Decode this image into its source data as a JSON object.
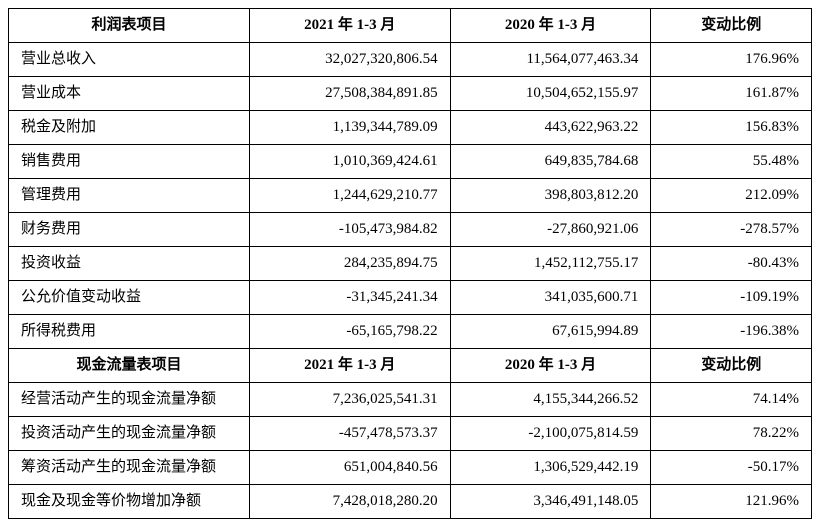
{
  "section1": {
    "headers": [
      "利润表项目",
      "2021 年 1-3 月",
      "2020 年 1-3 月",
      "变动比例"
    ],
    "rows": [
      {
        "label": "营业总收入",
        "v2021": "32,027,320,806.54",
        "v2020": "11,564,077,463.34",
        "change": "176.96%"
      },
      {
        "label": "营业成本",
        "v2021": "27,508,384,891.85",
        "v2020": "10,504,652,155.97",
        "change": "161.87%"
      },
      {
        "label": "税金及附加",
        "v2021": "1,139,344,789.09",
        "v2020": "443,622,963.22",
        "change": "156.83%"
      },
      {
        "label": "销售费用",
        "v2021": "1,010,369,424.61",
        "v2020": "649,835,784.68",
        "change": "55.48%"
      },
      {
        "label": "管理费用",
        "v2021": "1,244,629,210.77",
        "v2020": "398,803,812.20",
        "change": "212.09%"
      },
      {
        "label": "财务费用",
        "v2021": "-105,473,984.82",
        "v2020": "-27,860,921.06",
        "change": "-278.57%"
      },
      {
        "label": "投资收益",
        "v2021": "284,235,894.75",
        "v2020": "1,452,112,755.17",
        "change": "-80.43%"
      },
      {
        "label": "公允价值变动收益",
        "v2021": "-31,345,241.34",
        "v2020": "341,035,600.71",
        "change": "-109.19%"
      },
      {
        "label": "所得税费用",
        "v2021": "-65,165,798.22",
        "v2020": "67,615,994.89",
        "change": "-196.38%"
      }
    ]
  },
  "section2": {
    "headers": [
      "现金流量表项目",
      "2021 年 1-3 月",
      "2020 年 1-3 月",
      "变动比例"
    ],
    "rows": [
      {
        "label": "经营活动产生的现金流量净额",
        "v2021": "7,236,025,541.31",
        "v2020": "4,155,344,266.52",
        "change": "74.14%"
      },
      {
        "label": "投资活动产生的现金流量净额",
        "v2021": "-457,478,573.37",
        "v2020": "-2,100,075,814.59",
        "change": "78.22%"
      },
      {
        "label": "筹资活动产生的现金流量净额",
        "v2021": "651,004,840.56",
        "v2020": "1,306,529,442.19",
        "change": "-50.17%"
      },
      {
        "label": "现金及现金等价物增加净额",
        "v2021": "7,428,018,280.20",
        "v2020": "3,346,491,148.05",
        "change": "121.96%"
      }
    ]
  },
  "styling": {
    "border_color": "#000000",
    "background_color": "#ffffff",
    "text_color": "#000000",
    "font_family": "SimSun",
    "cell_font_size": 15,
    "header_font_weight": "bold"
  }
}
